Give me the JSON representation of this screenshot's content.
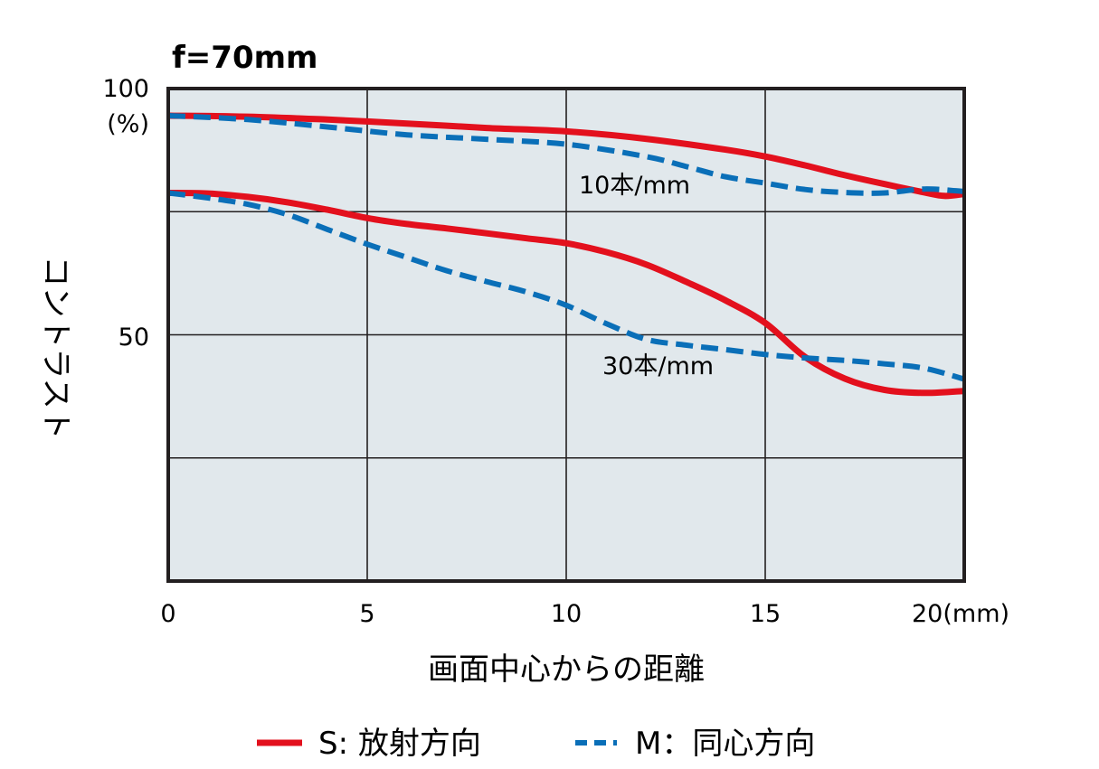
{
  "chart_data": {
    "type": "line",
    "title": "f=70mm",
    "xlabel": "画面中心からの距離",
    "ylabel": "コントラスト",
    "xlim": [
      0,
      20
    ],
    "ylim": [
      0,
      100
    ],
    "x_ticks": [
      "0",
      "5",
      "10",
      "15",
      "20(mm)"
    ],
    "y_ticks": [
      "100",
      "(%)",
      "50"
    ],
    "grid": true,
    "legend_position": "bottom",
    "legend": [
      {
        "label": "S: 放射方向",
        "style": "solid",
        "color": "#e3101d"
      },
      {
        "label": "M：同心方向",
        "style": "dashed",
        "color": "#0a6fb8"
      }
    ],
    "annotations": [
      "10本/mm",
      "30本/mm"
    ],
    "series": [
      {
        "group": "10本/mm",
        "style": "solid",
        "color": "#e3101d",
        "x": [
          0,
          2,
          4,
          6,
          8,
          10,
          12,
          14,
          15,
          16,
          17,
          18,
          19,
          19.5,
          20
        ],
        "values": [
          94.5,
          94.3,
          93.7,
          92.9,
          92.0,
          91.3,
          89.8,
          87.6,
          86.2,
          84.4,
          82.4,
          80.6,
          78.9,
          78.2,
          78.6
        ]
      },
      {
        "group": "10本/mm",
        "style": "dashed",
        "color": "#0a6fb8",
        "x": [
          0,
          2,
          4,
          6,
          8,
          10,
          12,
          13,
          14,
          15,
          16,
          17,
          18,
          19,
          20
        ],
        "values": [
          94.5,
          93.7,
          92.2,
          90.6,
          89.7,
          88.7,
          86.2,
          84.2,
          82.1,
          80.8,
          79.5,
          78.9,
          78.8,
          79.6,
          79.1
        ]
      },
      {
        "group": "30本/mm",
        "style": "solid",
        "color": "#e3101d",
        "x": [
          0,
          1,
          2,
          3,
          4,
          5,
          6,
          7,
          8,
          9,
          10,
          11,
          12,
          13,
          14,
          15,
          16,
          17,
          18,
          19,
          20
        ],
        "values": [
          78.8,
          78.7,
          78.0,
          76.9,
          75.4,
          73.7,
          72.5,
          71.6,
          70.6,
          69.6,
          68.6,
          66.8,
          64.3,
          60.8,
          57.0,
          52.4,
          45.5,
          41.1,
          38.8,
          38.2,
          38.6
        ]
      },
      {
        "group": "30本/mm",
        "style": "dashed",
        "color": "#0a6fb8",
        "x": [
          0,
          1,
          2,
          3,
          4,
          5,
          6,
          7,
          8,
          9,
          10,
          11,
          12,
          13,
          14,
          15,
          16,
          17,
          18,
          19,
          20
        ],
        "values": [
          78.8,
          77.8,
          76.5,
          74.4,
          71.4,
          68.4,
          65.7,
          63.0,
          60.8,
          58.7,
          56.0,
          52.3,
          49.1,
          47.9,
          47.0,
          46.0,
          45.3,
          44.8,
          44.1,
          43.2,
          41.0
        ]
      }
    ]
  }
}
